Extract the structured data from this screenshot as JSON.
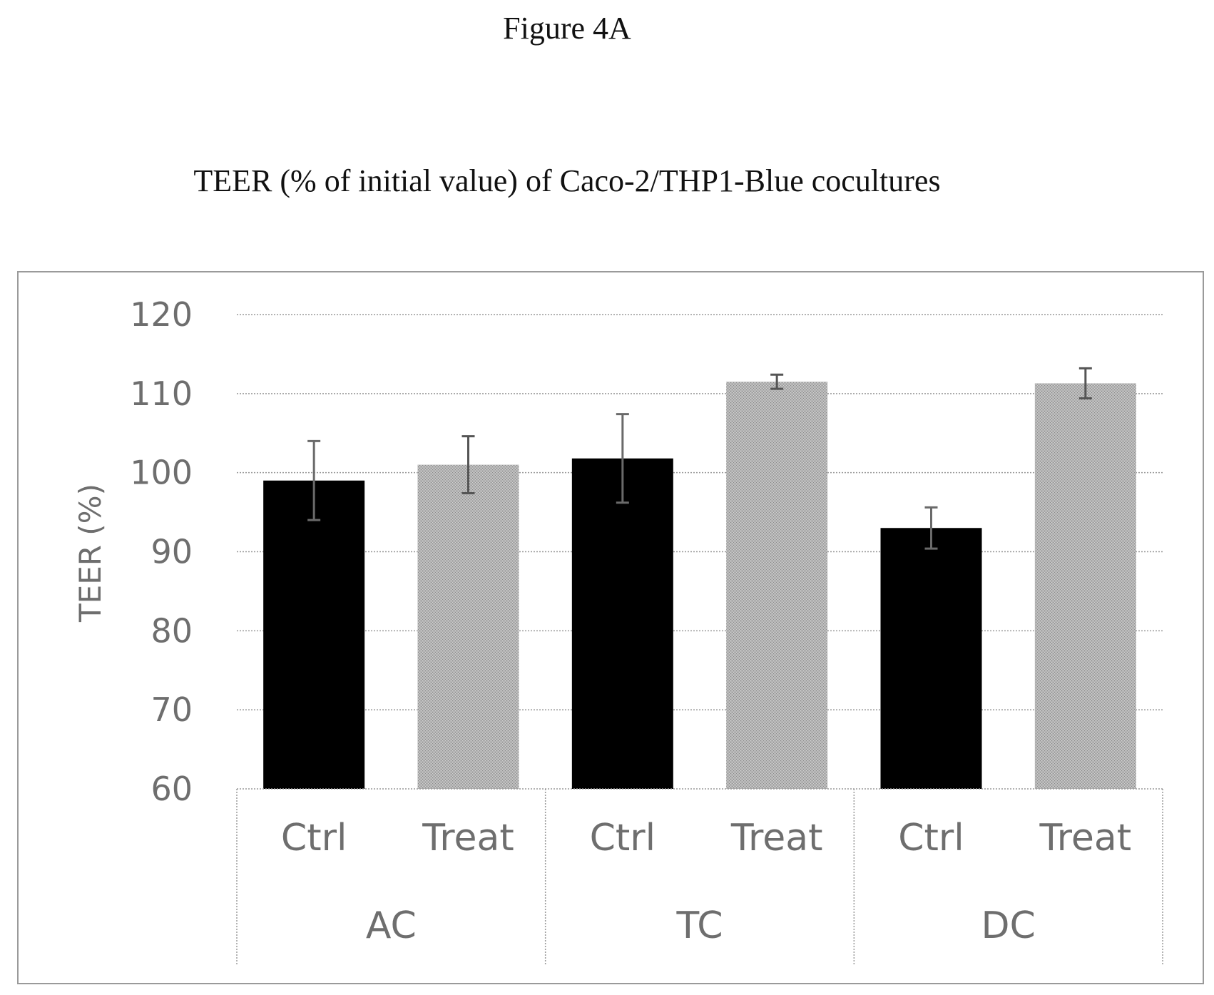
{
  "figure_label": "Figure 4A",
  "chart_data": {
    "type": "bar",
    "title": "TEER (% of initial value) of Caco-2/THP1-Blue cocultures",
    "ylabel": "TEER (%)",
    "ylim": [
      60,
      120
    ],
    "yticks": [
      60,
      70,
      80,
      90,
      100,
      110,
      120
    ],
    "grid": true,
    "groups": [
      {
        "label": "AC",
        "bars": [
          {
            "label": "Ctrl",
            "value": 99,
            "error": 5,
            "color": "#000000"
          },
          {
            "label": "Treat",
            "value": 101,
            "error": 3.6,
            "color": "#a6a6a6"
          }
        ]
      },
      {
        "label": "TC",
        "bars": [
          {
            "label": "Ctrl",
            "value": 101.8,
            "error": 5.6,
            "color": "#000000"
          },
          {
            "label": "Treat",
            "value": 111.5,
            "error": 0.9,
            "color": "#a6a6a6"
          }
        ]
      },
      {
        "label": "DC",
        "bars": [
          {
            "label": "Ctrl",
            "value": 93,
            "error": 2.6,
            "color": "#000000"
          },
          {
            "label": "Treat",
            "value": 111.3,
            "error": 1.9,
            "color": "#a6a6a6"
          }
        ]
      }
    ]
  }
}
